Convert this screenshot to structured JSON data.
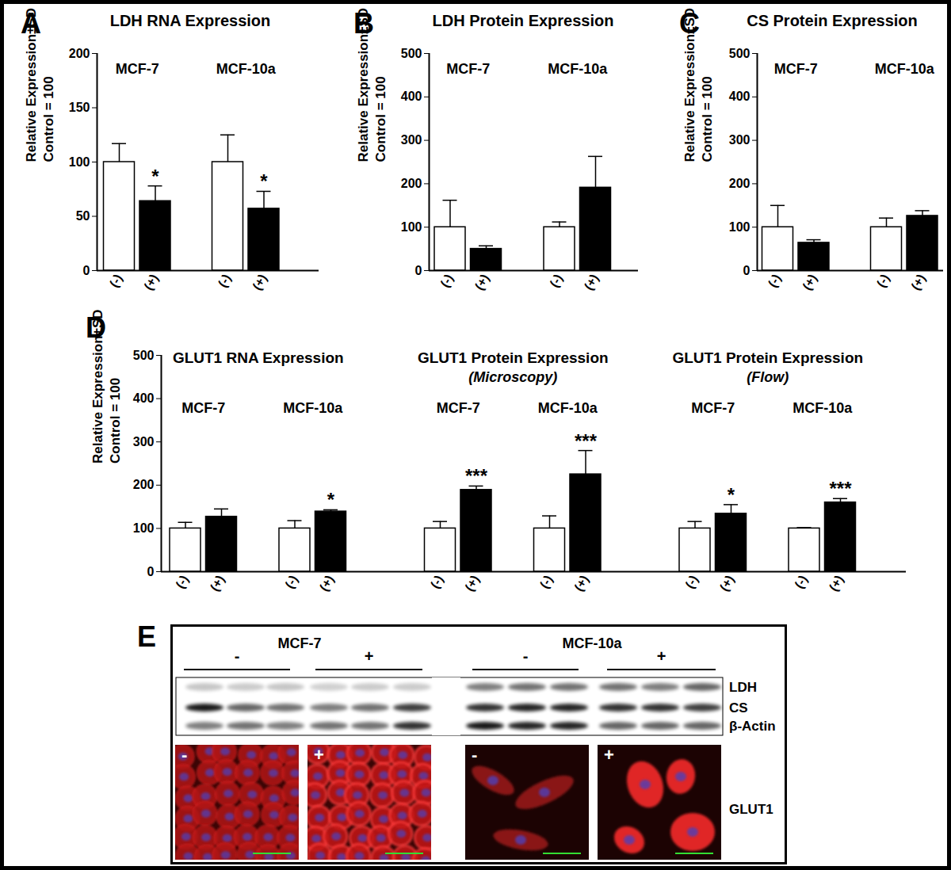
{
  "chart_data": [
    {
      "panel": "A",
      "type": "bar",
      "title": "LDH RNA Expression",
      "ylabel": [
        "Relative Expression±SD",
        "Control = 100"
      ],
      "groups": [
        "MCF-7",
        "MCF-10a"
      ],
      "categories": [
        "(-)",
        "(+)",
        "(-)",
        "(+)"
      ],
      "colors": [
        "#ffffff",
        "#000000",
        "#ffffff",
        "#000000"
      ],
      "values": [
        100,
        64,
        100,
        57
      ],
      "errors": [
        17,
        14,
        25,
        16
      ],
      "annotations": [
        null,
        "*",
        null,
        "*"
      ],
      "ylim": [
        0,
        200
      ],
      "yticks": [
        0,
        50,
        100,
        150,
        200
      ]
    },
    {
      "panel": "B",
      "type": "bar",
      "title": "LDH Protein Expression",
      "ylabel": [
        "Relative Expression±SD",
        "Control = 100"
      ],
      "groups": [
        "MCF-7",
        "MCF-10a"
      ],
      "categories": [
        "(-)",
        "(+)",
        "(-)",
        "(+)"
      ],
      "colors": [
        "#ffffff",
        "#000000",
        "#ffffff",
        "#000000"
      ],
      "values": [
        100,
        50,
        100,
        191
      ],
      "errors": [
        62,
        7,
        12,
        72
      ],
      "ylim": [
        0,
        500
      ],
      "yticks": [
        0,
        100,
        200,
        300,
        400,
        500
      ]
    },
    {
      "panel": "C",
      "type": "bar",
      "title": "CS Protein Expression",
      "ylabel": [
        "Relative Expression±SD",
        "Control = 100"
      ],
      "groups": [
        "MCF-7",
        "MCF-10a"
      ],
      "categories": [
        "(-)",
        "(+)",
        "(-)",
        "(+)"
      ],
      "colors": [
        "#ffffff",
        "#000000",
        "#ffffff",
        "#000000"
      ],
      "values": [
        100,
        64,
        100,
        126
      ],
      "errors": [
        50,
        7,
        21,
        12
      ],
      "ylim": [
        0,
        500
      ],
      "yticks": [
        0,
        100,
        200,
        300,
        400,
        500
      ]
    },
    {
      "panel": "D",
      "type": "bar",
      "ylabel": [
        "Relative Expression±SD",
        "Control = 100"
      ],
      "groups": [
        "MCF-7",
        "MCF-10a"
      ],
      "categories": [
        "(-)",
        "(+)",
        "(-)",
        "(+)"
      ],
      "colors": [
        "#ffffff",
        "#000000",
        "#ffffff",
        "#000000"
      ],
      "sections": [
        {
          "title": "GLUT1 RNA Expression",
          "values": [
            100,
            127,
            100,
            139
          ],
          "errors": [
            14,
            18,
            18,
            4
          ],
          "annotations": [
            null,
            null,
            null,
            "*"
          ]
        },
        {
          "title": "GLUT1 Protein Expression",
          "subtitle": "(Microscopy)",
          "values": [
            100,
            189,
            100,
            225
          ],
          "errors": [
            16,
            9,
            29,
            55
          ],
          "annotations": [
            null,
            "***",
            null,
            "***"
          ]
        },
        {
          "title": "GLUT1 Protein Expression",
          "subtitle": "(Flow)",
          "values": [
            100,
            134,
            100,
            160
          ],
          "errors": [
            16,
            21,
            2,
            9
          ],
          "annotations": [
            null,
            "*",
            null,
            "***"
          ]
        }
      ],
      "ylim": [
        0,
        500
      ],
      "yticks": [
        0,
        100,
        200,
        300,
        400,
        500
      ]
    }
  ],
  "panel_e": {
    "letter": "E",
    "cell_lines": [
      "MCF-7",
      "MCF-10a"
    ],
    "conditions": [
      "-",
      "+"
    ],
    "blot_bands": [
      "LDH",
      "CS",
      "β-Actin"
    ],
    "stain": "GLUT1"
  }
}
